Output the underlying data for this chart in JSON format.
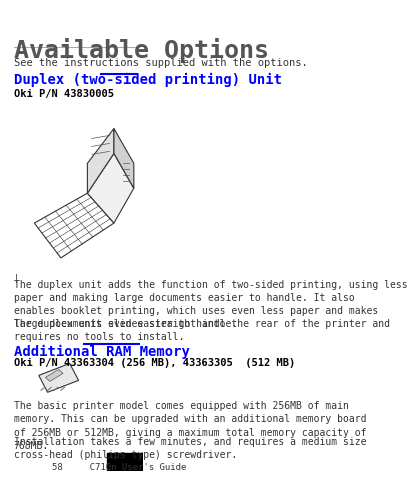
{
  "bg_color": "#ffffff",
  "title": "Available Options",
  "title_color": "#555555",
  "title_fontsize": 18,
  "separator_color": "#aaaaaa",
  "intro_text": "See the instructions supplied with the options.",
  "intro_fontsize": 7.5,
  "section1_heading": "Duplex (two-sided printing) Unit",
  "section1_heading_color": "#0000ff",
  "section1_heading_fontsize": 10,
  "section1_line_color": "#0000ff",
  "section1_partnumber": "Oki P/N 43830005",
  "section1_partnumber_fontsize": 7.5,
  "section1_body1": "The duplex unit adds the function of two-sided printing, using less\npaper and making large documents easier to handle. It also\nenables booklet printing, which uses even less paper and makes\nlarge documents even easier to handle.",
  "section1_body2": "The duplex unit slides straight into the rear of the printer and\nrequires no tools to install.",
  "section2_heading": "Additional RAM Memory",
  "section2_heading_color": "#0000ff",
  "section2_heading_fontsize": 10,
  "section2_line_color": "#0000ff",
  "section2_partnumber": "Oki P/N 43363304 (256 MB), 43363305  (512 MB)",
  "section2_partnumber_fontsize": 7.5,
  "section2_body1": "The basic printer model comes equipped with 256MB of main\nmemory. This can be upgraded with an additional memory board\nof 256MB or 512MB, giving a maximum total memory capacity of\n768MB.",
  "section2_body2": "Installation takes a few minutes, and requires a medium size\ncross-head (philips type) screwdriver.",
  "footer_text": "58     C710n User's Guide",
  "body_fontsize": 7.0,
  "body_color": "#333333",
  "font_family": "monospace"
}
